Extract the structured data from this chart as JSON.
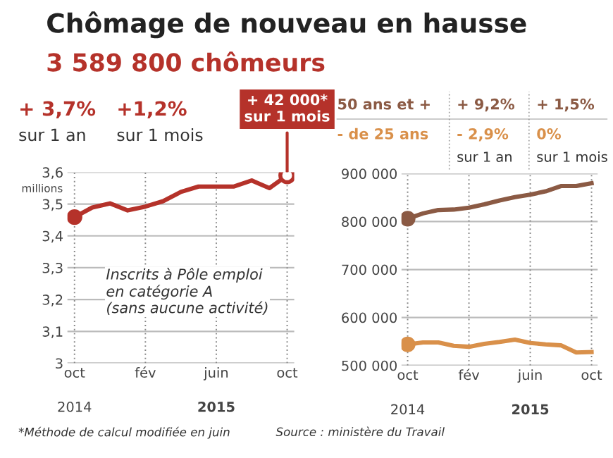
{
  "chart_data": [
    {
      "type": "line",
      "title": "Chômage de nouveau en hausse",
      "subtitle": "3 589 800 chômeurs",
      "ylabel": "millions",
      "categories": [
        "oct",
        null,
        null,
        null,
        "fév",
        null,
        null,
        null,
        "juin",
        null,
        null,
        null,
        "oct"
      ],
      "series": [
        {
          "color": "#b5322a",
          "values": [
            3.459,
            3.489,
            3.502,
            3.48,
            3.492,
            3.509,
            3.538,
            3.555,
            3.555,
            3.555,
            3.574,
            3.55,
            3.59
          ]
        }
      ],
      "ylim": [
        3,
        3.6
      ],
      "yticks": [
        {
          "value": 3,
          "label": "3"
        },
        {
          "value": 3.1,
          "label": "3,1"
        },
        {
          "value": 3.2,
          "label": "3,2"
        },
        {
          "value": 3.3,
          "label": "3,3"
        },
        {
          "value": 3.4,
          "label": "3,4"
        },
        {
          "value": 3.5,
          "label": "3,5"
        },
        {
          "value": 3.6,
          "label": "3,6"
        }
      ],
      "grid": true,
      "annotations": [
        "+ 3,7%",
        "sur 1 an",
        "+1,2%",
        "sur 1 mois",
        "+ 42 000*\nsur 1 mois",
        "Inscrits à Pôle emploi\nen catégorie A\n(sans aucune activité)",
        "2014",
        "2015",
        "*Méthode de calcul modifiée en juin",
        "Source : ministère du Travail"
      ]
    },
    {
      "type": "line",
      "categories": [
        "oct",
        null,
        null,
        null,
        "fév",
        null,
        null,
        null,
        "juin",
        null,
        null,
        null,
        "oct"
      ],
      "series": [
        {
          "name": "50 ans et +",
          "color": "#8b5a44",
          "values": [
            806000,
            817000,
            824000,
            825000,
            829000,
            836000,
            844000,
            851000,
            856000,
            863000,
            874000,
            874000,
            880000
          ]
        },
        {
          "name": "- de 25 ans",
          "color": "#d9904a",
          "values": [
            544000,
            548000,
            548000,
            541000,
            539000,
            545000,
            549000,
            554000,
            547000,
            544000,
            542000,
            527000,
            528000
          ]
        }
      ],
      "ylim": [
        500000,
        900000
      ],
      "yticks": [
        {
          "value": 500000,
          "label": "500 000"
        },
        {
          "value": 600000,
          "label": "600 000"
        },
        {
          "value": 700000,
          "label": "700 000"
        },
        {
          "value": 800000,
          "label": "800 000"
        },
        {
          "value": 900000,
          "label": "900 000"
        }
      ],
      "grid": true,
      "annotations": [
        "+ 9,2%",
        "+ 1,5%",
        "- 2,9%",
        "0%",
        "sur 1 an",
        "sur 1 mois",
        "2014",
        "2015"
      ]
    }
  ]
}
